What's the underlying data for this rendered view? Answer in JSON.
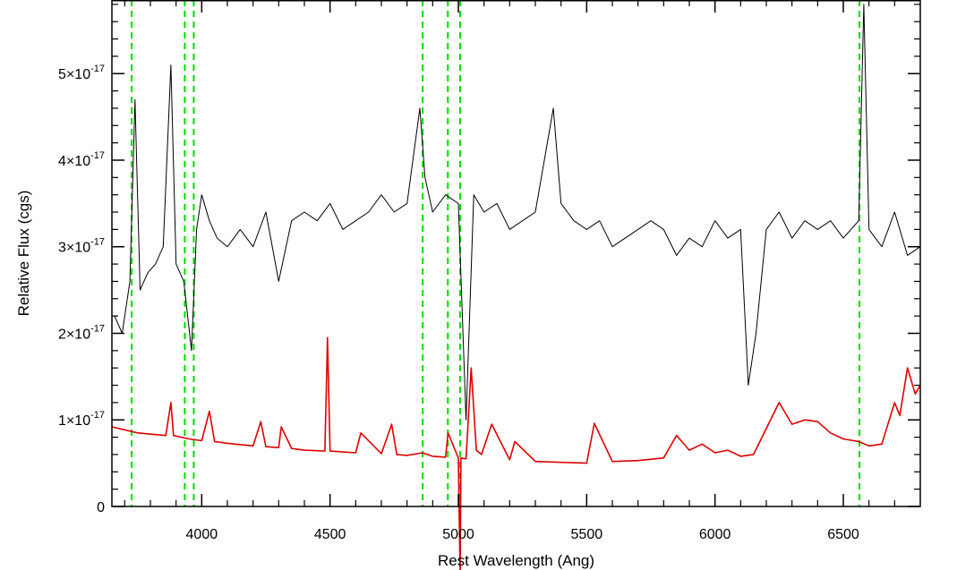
{
  "chart_data": {
    "type": "line",
    "title": "",
    "xlabel": "Rest Wavelength (Ang)",
    "ylabel": "Relative Flux (cgs)",
    "xlim": [
      3650,
      6800
    ],
    "ylim": [
      0,
      5.85e-17
    ],
    "x_ticks": [
      {
        "value": 4000,
        "label": "4000"
      },
      {
        "value": 4500,
        "label": "4500"
      },
      {
        "value": 5000,
        "label": "5000"
      },
      {
        "value": 5500,
        "label": "5500"
      },
      {
        "value": 6000,
        "label": "6000"
      },
      {
        "value": 6500,
        "label": "6500"
      }
    ],
    "y_ticks": [
      {
        "value": 0,
        "mantissa": "0",
        "exponent": ""
      },
      {
        "value": 1e-17,
        "mantissa": "1×10",
        "exponent": "-17"
      },
      {
        "value": 2e-17,
        "mantissa": "2×10",
        "exponent": "-17"
      },
      {
        "value": 3e-17,
        "mantissa": "3×10",
        "exponent": "-17"
      },
      {
        "value": 4e-17,
        "mantissa": "4×10",
        "exponent": "-17"
      },
      {
        "value": 5e-17,
        "mantissa": "5×10",
        "exponent": "-17"
      }
    ],
    "grid": false,
    "legend": "none",
    "series": [
      {
        "color": "#000000",
        "x": [
          3660,
          3690,
          3720,
          3740,
          3760,
          3790,
          3820,
          3850,
          3880,
          3900,
          3930,
          3960,
          3980,
          4000,
          4030,
          4060,
          4100,
          4150,
          4200,
          4250,
          4300,
          4350,
          4400,
          4450,
          4500,
          4550,
          4600,
          4650,
          4700,
          4750,
          4800,
          4850,
          4870,
          4900,
          4950,
          5000,
          5030,
          5060,
          5100,
          5150,
          5200,
          5250,
          5300,
          5370,
          5400,
          5450,
          5500,
          5550,
          5600,
          5650,
          5700,
          5750,
          5800,
          5850,
          5900,
          5950,
          6000,
          6050,
          6100,
          6130,
          6160,
          6200,
          6250,
          6300,
          6350,
          6400,
          6450,
          6500,
          6560,
          6580,
          6600,
          6650,
          6700,
          6750,
          6800
        ],
        "y": [
          2.2e-17,
          2e-17,
          2.6e-17,
          4.7e-17,
          2.5e-17,
          2.7e-17,
          2.8e-17,
          3e-17,
          5.1e-17,
          2.8e-17,
          2.6e-17,
          1.8e-17,
          3.2e-17,
          3.6e-17,
          3.3e-17,
          3.1e-17,
          3e-17,
          3.2e-17,
          3e-17,
          3.4e-17,
          2.6e-17,
          3.3e-17,
          3.4e-17,
          3.3e-17,
          3.5e-17,
          3.2e-17,
          3.3e-17,
          3.4e-17,
          3.6e-17,
          3.4e-17,
          3.5e-17,
          4.6e-17,
          3.8e-17,
          3.4e-17,
          3.6e-17,
          3.5e-17,
          1e-17,
          3.6e-17,
          3.4e-17,
          3.5e-17,
          3.2e-17,
          3.3e-17,
          3.4e-17,
          4.6e-17,
          3.5e-17,
          3.3e-17,
          3.2e-17,
          3.3e-17,
          3e-17,
          3.1e-17,
          3.2e-17,
          3.3e-17,
          3.2e-17,
          2.9e-17,
          3.1e-17,
          3e-17,
          3.3e-17,
          3.1e-17,
          3.2e-17,
          1.4e-17,
          2e-17,
          3.2e-17,
          3.4e-17,
          3.1e-17,
          3.3e-17,
          3.2e-17,
          3.3e-17,
          3.1e-17,
          3.3e-17,
          5.8e-17,
          3.2e-17,
          3e-17,
          3.4e-17,
          2.9e-17,
          3e-17
        ]
      },
      {
        "color": "#e00000",
        "x": [
          3650,
          3750,
          3860,
          3880,
          3890,
          3950,
          4000,
          4030,
          4050,
          4100,
          4200,
          4230,
          4250,
          4300,
          4310,
          4350,
          4400,
          4480,
          4490,
          4500,
          4600,
          4620,
          4700,
          4740,
          4760,
          4800,
          4860,
          4900,
          4950,
          4960,
          5000,
          5007,
          5010,
          5030,
          5050,
          5070,
          5090,
          5130,
          5200,
          5220,
          5300,
          5400,
          5500,
          5530,
          5600,
          5700,
          5800,
          5850,
          5900,
          5950,
          6000,
          6050,
          6100,
          6150,
          6200,
          6250,
          6300,
          6350,
          6400,
          6450,
          6500,
          6560,
          6600,
          6650,
          6700,
          6720,
          6750,
          6780,
          6800
        ],
        "y": [
          9.2e-18,
          8.5e-18,
          8.2e-18,
          1.2e-17,
          8.2e-18,
          7.8e-18,
          7.6e-18,
          1.1e-17,
          7.5e-18,
          7.3e-18,
          7e-18,
          9.8e-18,
          6.9e-18,
          6.8e-18,
          9.2e-18,
          6.7e-18,
          6.5e-18,
          6.4e-18,
          1.95e-17,
          6.4e-18,
          6.2e-18,
          8.5e-18,
          6.1e-18,
          9.5e-18,
          6e-18,
          5.9e-18,
          6.2e-18,
          5.8e-18,
          5.7e-18,
          8.5e-18,
          5.6e-18,
          -8e-18,
          5.6e-18,
          5.5e-18,
          1.6e-17,
          6.5e-18,
          6e-18,
          9.5e-18,
          5.4e-18,
          7.5e-18,
          5.2e-18,
          5.1e-18,
          5e-18,
          9.6e-18,
          5.2e-18,
          5.3e-18,
          5.6e-18,
          8.2e-18,
          6.5e-18,
          7.2e-18,
          6.2e-18,
          6.5e-18,
          5.8e-18,
          6e-18,
          9e-18,
          1.2e-17,
          9.5e-18,
          1e-17,
          9.8e-18,
          8.5e-18,
          7.8e-18,
          7.5e-18,
          7e-18,
          7.2e-18,
          1.2e-17,
          1.05e-17,
          1.6e-17,
          1.3e-17,
          1.4e-17
        ]
      }
    ],
    "vertical_lines": {
      "color": "#00dd00",
      "style": "dashed",
      "x": [
        3727,
        3934,
        3969,
        4861,
        4959,
        5007,
        6563
      ]
    }
  }
}
